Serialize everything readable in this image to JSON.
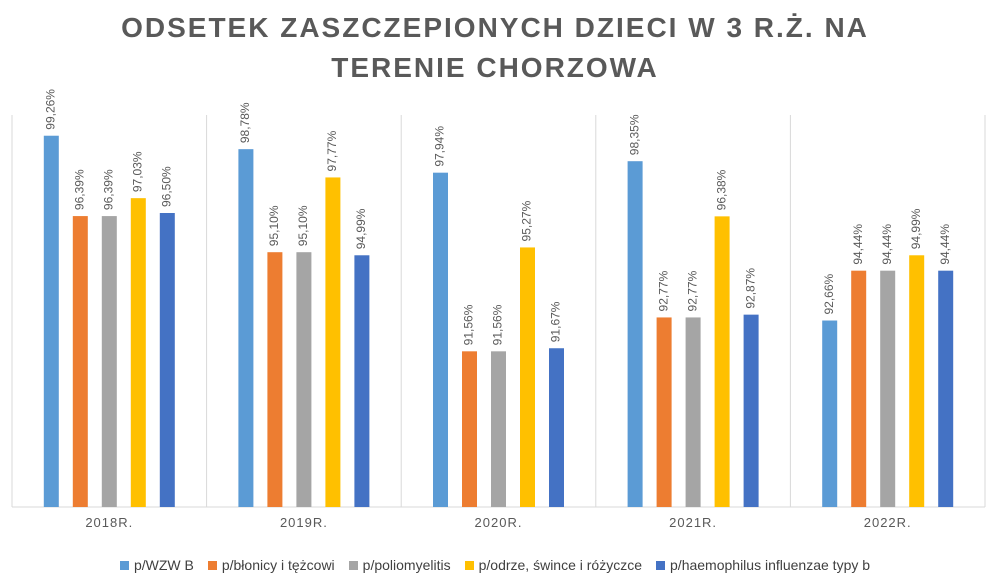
{
  "chart_data": {
    "type": "bar",
    "title": "ODSETEK ZASZCZEPIONYCH DZIECI W 3 R.Ż. NA TERENIE CHORZOWA",
    "categories": [
      "2018R.",
      "2019R.",
      "2020R.",
      "2021R.",
      "2022R."
    ],
    "series": [
      {
        "name": "p/WZW B",
        "color": "#5b9bd5",
        "values": [
          99.26,
          98.78,
          97.94,
          98.35,
          92.66
        ],
        "value_labels": [
          "99,26%",
          "98,78%",
          "97,94%",
          "98,35%",
          "92,66%"
        ]
      },
      {
        "name": "p/błonicy i tężcowi",
        "color": "#ed7d31",
        "values": [
          96.39,
          95.1,
          91.56,
          92.77,
          94.44
        ],
        "value_labels": [
          "96,39%",
          "95,10%",
          "91,56%",
          "92,77%",
          "94,44%"
        ]
      },
      {
        "name": "p/poliomyelitis",
        "color": "#a5a5a5",
        "values": [
          96.39,
          95.1,
          91.56,
          92.77,
          94.44
        ],
        "value_labels": [
          "96,39%",
          "95,10%",
          "91,56%",
          "92,77%",
          "94,44%"
        ]
      },
      {
        "name": "p/odrze, śwince i różyczce",
        "color": "#ffc000",
        "values": [
          97.03,
          97.77,
          95.27,
          96.38,
          94.99
        ],
        "value_labels": [
          "97,03%",
          "97,77%",
          "95,27%",
          "96,38%",
          "94,99%"
        ]
      },
      {
        "name": "p/haemophilus influenzae typy b",
        "color": "#4472c4",
        "values": [
          96.5,
          94.99,
          91.67,
          92.87,
          94.44
        ],
        "value_labels": [
          "96,50%",
          "94,99%",
          "91,67%",
          "92,87%",
          "94,44%"
        ]
      }
    ],
    "ylim": [
      86,
      100
    ],
    "legend": "bottom"
  }
}
